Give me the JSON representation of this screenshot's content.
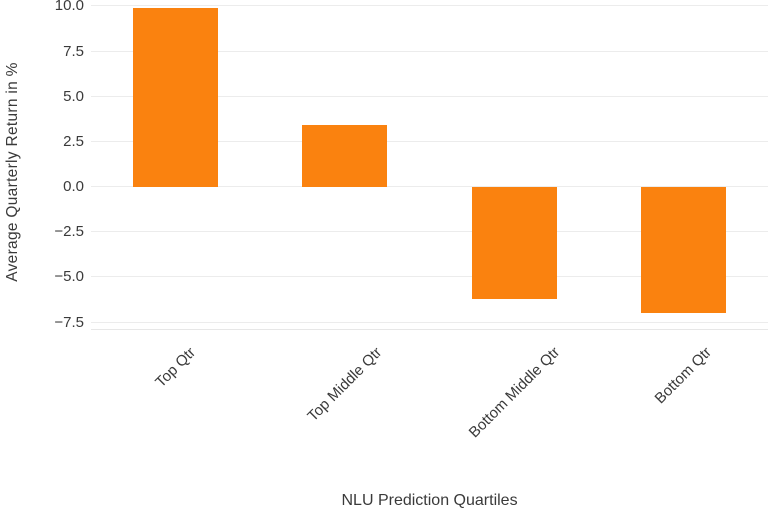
{
  "chart_data": {
    "type": "bar",
    "title": "",
    "categories": [
      "Top Qtr",
      "Top Middle Qtr",
      "Bottom Middle Qtr",
      "Bottom Qtr"
    ],
    "values": [
      9.9,
      3.4,
      -6.2,
      -7.0
    ],
    "xlabel": "NLU Prediction Quartiles",
    "ylabel": "Average Quarterly Return in %",
    "yticks": [
      10.0,
      7.5,
      5.0,
      2.5,
      0.0,
      -2.5,
      -5.0,
      -7.5
    ],
    "ytick_labels": [
      "10.0",
      "7.5",
      "5.0",
      "2.5",
      "0.0",
      "−2.5",
      "−5.0",
      "−7.5"
    ],
    "ylim": [
      -7.94,
      10.33
    ],
    "grid": true,
    "legend": false,
    "colors": {
      "bar": "#fa820f",
      "grid": "#ececec",
      "axis_line": "#e7e7e7",
      "text": "#3a3a3a",
      "background": "#ffffff"
    }
  }
}
